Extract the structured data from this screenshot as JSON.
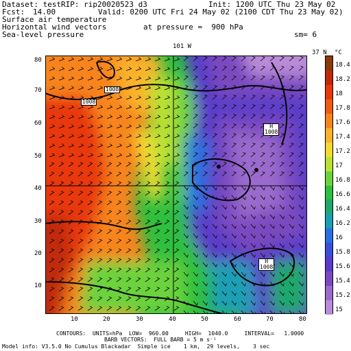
{
  "header": {
    "dataset": "Dataset: test",
    "rip": "RIP: rip20020523 d3",
    "init": "Init: 1200 UTC Thu 23 May 02",
    "fcst_label": "Fcst:",
    "fcst_value": "14.00",
    "valid": "Valid: 0200 UTC Fri 24 May 02 (2100 CDT Thu 23 May 02)",
    "line3": "Surface air temperature",
    "line4": "Horizontal wind vectors",
    "line4_right": "at pressure =  900 hPa",
    "line5": "Sea-level pressure",
    "line5_right": "sm= 6"
  },
  "top_label": "101 W",
  "right_label": "37 N",
  "x_ticks": [
    "10",
    "20",
    "30",
    "40",
    "50",
    "60",
    "70",
    "80"
  ],
  "y_ticks": [
    "80",
    "70",
    "60",
    "50",
    "40",
    "30",
    "20",
    "10"
  ],
  "contour_labels": [
    "1008",
    "1008",
    "H\n1008",
    "H\n1008"
  ],
  "colorbar": {
    "unit": "°C",
    "labels": [
      "18.4",
      "18.2",
      "18",
      "17.8",
      "17.6",
      "17.4",
      "17.2",
      "17",
      "16.8",
      "16.6",
      "16.4",
      "16.2",
      "16",
      "15.8",
      "15.6",
      "15.4",
      "15.2",
      "15"
    ],
    "colors": [
      "#8b3a0a",
      "#c02a0a",
      "#e8380c",
      "#f05a12",
      "#f7841c",
      "#fbb22a",
      "#f2da30",
      "#b8e036",
      "#6cd23c",
      "#2dbf3e",
      "#1ea86a",
      "#1a9fb5",
      "#2a6fe0",
      "#3a4fd8",
      "#5a3cc8",
      "#7a48c0",
      "#9a6acc",
      "#b98bd8"
    ]
  },
  "footer": {
    "line1": "CONTOURS:  UNITS=hPa  LOW=  960.00     HIGH=  1040.0     INTERVAL=   1.0000",
    "line2": "BARB VECTORS:  FULL BARB = 5 m s⁻¹",
    "line3": "Model info: V3.5.0 No Cumulus Blackadar  Simple ice    1 km,  29 levels,    3 sec"
  }
}
